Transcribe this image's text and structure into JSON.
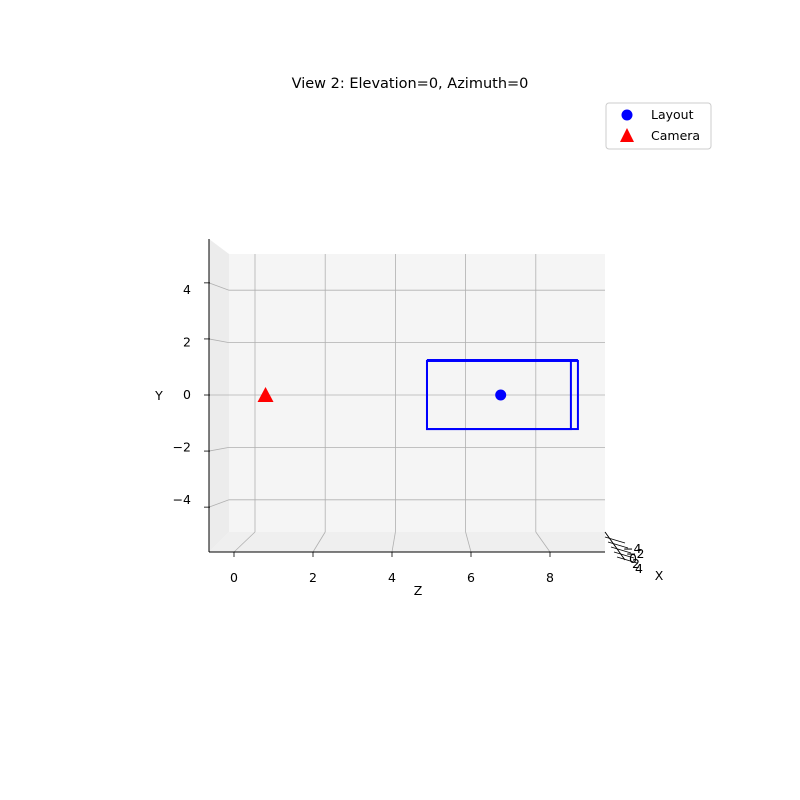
{
  "chart_data": {
    "type": "scatter",
    "title": "View 2: Elevation=0, Azimuth=0",
    "projection": "3d",
    "view": {
      "elevation": 0,
      "azimuth": 0
    },
    "xlabel": "Z",
    "ylabel": "Y",
    "zlabel": "X",
    "horizontal_axis": {
      "label": "Z",
      "ticks": [
        0,
        2,
        4,
        6,
        8
      ],
      "range": [
        -0.6,
        9.4
      ]
    },
    "vertical_axis": {
      "label": "Y",
      "ticks": [
        4,
        2,
        0,
        -2,
        -4
      ],
      "tick_labels": [
        "4",
        "2",
        "0",
        "−2",
        "−4"
      ],
      "range": [
        -5.3,
        5.3
      ]
    },
    "depth_axis": {
      "label": "X",
      "tick_labels": [
        "−4",
        "−2",
        "0",
        "2",
        "4"
      ]
    },
    "grid": true,
    "legend": {
      "position": "top-right",
      "entries": [
        "Layout",
        "Camera"
      ]
    },
    "series": [
      {
        "name": "Layout",
        "marker": "circle",
        "color": "#0000ff",
        "points": [
          {
            "z": 7.0,
            "y": 0.0
          }
        ]
      },
      {
        "name": "Camera",
        "marker": "triangle",
        "color": "#ff0000",
        "points": [
          {
            "z": 0.3,
            "y": 0.0
          }
        ]
      }
    ],
    "layout_box": {
      "color": "#0000ff",
      "front_face": {
        "z": [
          4.9,
          9.0
        ],
        "y": [
          -1.3,
          1.3
        ]
      },
      "back_face": {
        "z": [
          4.9,
          9.2
        ],
        "y": [
          -1.3,
          1.3
        ]
      }
    }
  }
}
